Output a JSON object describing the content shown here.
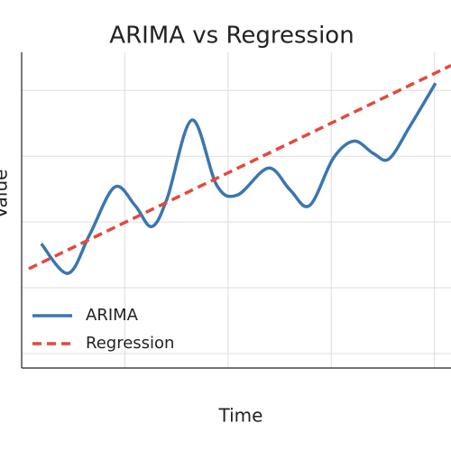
{
  "chart_data": {
    "type": "line",
    "title": "ARIMA vs Regression",
    "x_label": "Time",
    "y_label": "Value",
    "xlim": [
      0,
      4.16
    ],
    "ylim": [
      -0.22,
      4.58
    ],
    "xticks": [
      1,
      2,
      3,
      4
    ],
    "yticks": [
      0,
      1,
      2,
      3,
      4
    ],
    "grid": true,
    "legend": "lower left",
    "series": [
      {
        "name": "ARIMA",
        "color": "#3a76b0",
        "style": "solid",
        "x": [
          0.19,
          0.45,
          0.66,
          0.9,
          1.1,
          1.26,
          1.41,
          1.65,
          1.89,
          2.09,
          2.39,
          2.6,
          2.79,
          3.02,
          3.22,
          3.41,
          3.56,
          3.76,
          4.01
        ],
        "values": [
          1.67,
          1.22,
          1.81,
          2.53,
          2.25,
          1.93,
          2.36,
          3.55,
          2.56,
          2.41,
          2.82,
          2.49,
          2.25,
          2.97,
          3.23,
          3.04,
          2.96,
          3.45,
          4.11
        ]
      },
      {
        "name": "Regression",
        "color": "#e4493c",
        "style": "dashed",
        "x": [
          0.07,
          4.16
        ],
        "values": [
          1.29,
          4.38
        ]
      }
    ]
  }
}
